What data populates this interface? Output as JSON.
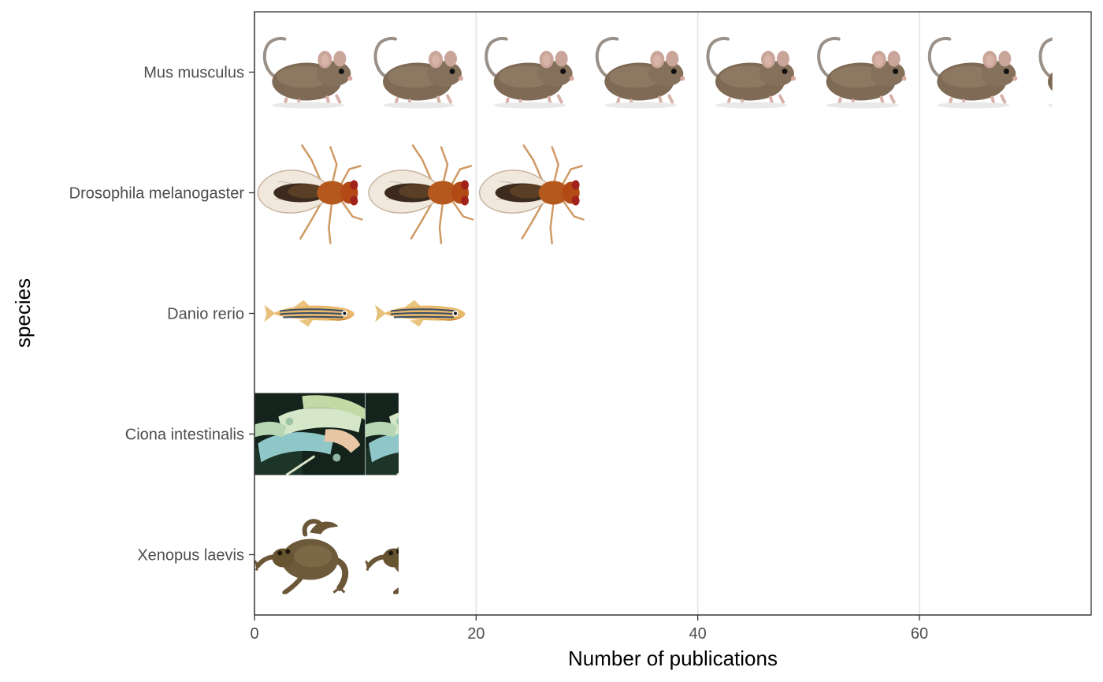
{
  "chart_data": {
    "type": "bar",
    "orientation": "horizontal",
    "style": "pictogram",
    "title": "",
    "xlabel": "Number of publications",
    "ylabel": "species",
    "categories": [
      "Mus musculus",
      "Drosophila melanogaster",
      "Danio rerio",
      "Ciona intestinalis",
      "Xenopus laevis"
    ],
    "values": [
      72,
      30,
      20,
      13,
      13
    ],
    "icons": [
      "mouse-icon",
      "fruit-fly-icon",
      "zebrafish-icon",
      "sea-squirt-icon",
      "frog-icon"
    ],
    "icon_unit": 10,
    "xlim": [
      0,
      75.5
    ],
    "xticks": [
      0,
      20,
      40,
      60
    ],
    "xtick_labels": [
      "0",
      "20",
      "40",
      "60"
    ],
    "grid": "vertical major gridlines",
    "legend": "none"
  }
}
